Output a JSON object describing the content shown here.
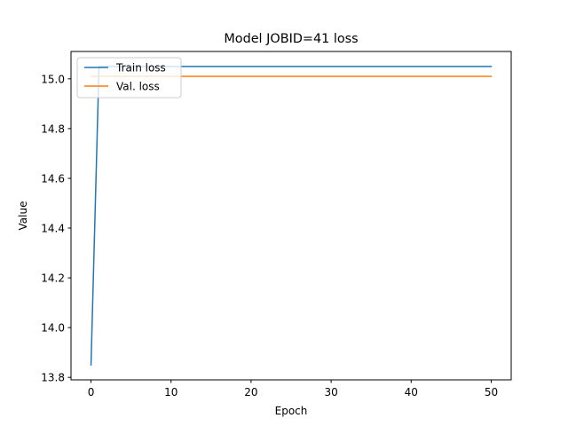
{
  "chart_data": {
    "type": "line",
    "title": "Model JOBID=41 loss",
    "xlabel": "Epoch",
    "ylabel": "Value",
    "xlim": [
      -2.5,
      52.5
    ],
    "ylim": [
      13.79,
      15.11
    ],
    "x_ticks": [
      0,
      10,
      20,
      30,
      40,
      50
    ],
    "y_ticks": [
      13.8,
      14.0,
      14.2,
      14.4,
      14.6,
      14.8,
      15.0
    ],
    "x_tick_labels": [
      "0",
      "10",
      "20",
      "30",
      "40",
      "50"
    ],
    "y_tick_labels": [
      "13.8",
      "14.0",
      "14.2",
      "14.4",
      "14.6",
      "14.8",
      "15.0"
    ],
    "grid": false,
    "legend_position": "top-left",
    "series": [
      {
        "name": "Train loss",
        "color": "#1f77b4",
        "x": [
          0,
          1,
          2,
          3,
          4,
          5,
          6,
          7,
          8,
          9,
          10,
          11,
          12,
          13,
          14,
          15,
          16,
          17,
          18,
          19,
          20,
          21,
          22,
          23,
          24,
          25,
          26,
          27,
          28,
          29,
          30,
          31,
          32,
          33,
          34,
          35,
          36,
          37,
          38,
          39,
          40,
          41,
          42,
          43,
          44,
          45,
          46,
          47,
          48,
          49,
          50
        ],
        "values": [
          13.85,
          15.05,
          15.05,
          15.05,
          15.05,
          15.05,
          15.05,
          15.05,
          15.05,
          15.05,
          15.05,
          15.05,
          15.05,
          15.05,
          15.05,
          15.05,
          15.05,
          15.05,
          15.05,
          15.05,
          15.05,
          15.05,
          15.05,
          15.05,
          15.05,
          15.05,
          15.05,
          15.05,
          15.05,
          15.05,
          15.05,
          15.05,
          15.05,
          15.05,
          15.05,
          15.05,
          15.05,
          15.05,
          15.05,
          15.05,
          15.05,
          15.05,
          15.05,
          15.05,
          15.05,
          15.05,
          15.05,
          15.05,
          15.05,
          15.05,
          15.05
        ]
      },
      {
        "name": "Val. loss",
        "color": "#ff7f0e",
        "x": [
          0,
          1,
          2,
          3,
          4,
          5,
          6,
          7,
          8,
          9,
          10,
          11,
          12,
          13,
          14,
          15,
          16,
          17,
          18,
          19,
          20,
          21,
          22,
          23,
          24,
          25,
          26,
          27,
          28,
          29,
          30,
          31,
          32,
          33,
          34,
          35,
          36,
          37,
          38,
          39,
          40,
          41,
          42,
          43,
          44,
          45,
          46,
          47,
          48,
          49,
          50
        ],
        "values": [
          15.01,
          15.01,
          15.01,
          15.01,
          15.01,
          15.01,
          15.01,
          15.01,
          15.01,
          15.01,
          15.01,
          15.01,
          15.01,
          15.01,
          15.01,
          15.01,
          15.01,
          15.01,
          15.01,
          15.01,
          15.01,
          15.01,
          15.01,
          15.01,
          15.01,
          15.01,
          15.01,
          15.01,
          15.01,
          15.01,
          15.01,
          15.01,
          15.01,
          15.01,
          15.01,
          15.01,
          15.01,
          15.01,
          15.01,
          15.01,
          15.01,
          15.01,
          15.01,
          15.01,
          15.01,
          15.01,
          15.01,
          15.01,
          15.01,
          15.01,
          15.01
        ]
      }
    ]
  }
}
